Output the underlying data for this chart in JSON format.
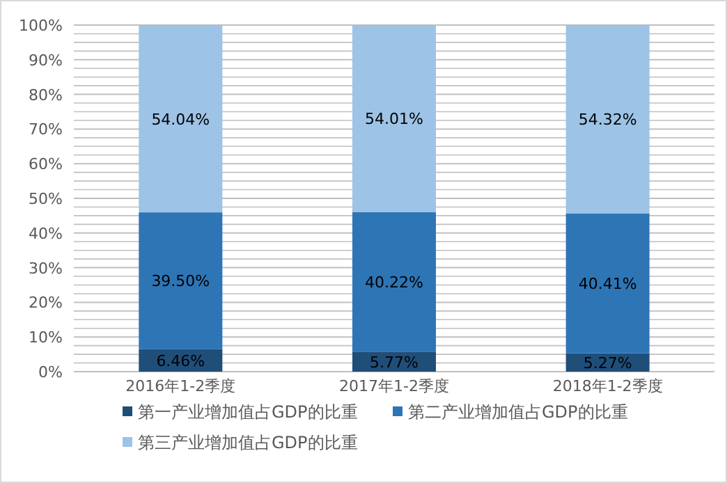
{
  "chart_data": {
    "type": "bar",
    "stacked": true,
    "categories": [
      "2016年1-2季度",
      "2017年1-2季度",
      "2018年1-2季度"
    ],
    "series": [
      {
        "name": "第一产业增加值占GDP的比重",
        "color": "#1f4e79",
        "values": [
          6.46,
          5.77,
          5.27
        ],
        "value_labels": [
          "6.46%",
          "5.77%",
          "5.27%"
        ]
      },
      {
        "name": "第二产业增加值占GDP的比重",
        "color": "#2e75b6",
        "values": [
          39.5,
          40.22,
          40.41
        ],
        "value_labels": [
          "39.50%",
          "40.22%",
          "40.41%"
        ]
      },
      {
        "name": "第三产业增加值占GDP的比重",
        "color": "#9dc3e6",
        "values": [
          54.04,
          54.01,
          54.32
        ],
        "value_labels": [
          "54.04%",
          "54.01%",
          "54.32%"
        ]
      }
    ],
    "ylim": [
      0,
      100
    ],
    "yticks": [
      {
        "value": 0,
        "label": "0%"
      },
      {
        "value": 10,
        "label": "10%"
      },
      {
        "value": 20,
        "label": "20%"
      },
      {
        "value": 30,
        "label": "30%"
      },
      {
        "value": 40,
        "label": "40%"
      },
      {
        "value": 50,
        "label": "50%"
      },
      {
        "value": 60,
        "label": "60%"
      },
      {
        "value": 70,
        "label": "70%"
      },
      {
        "value": 80,
        "label": "80%"
      },
      {
        "value": 90,
        "label": "90%"
      },
      {
        "value": 100,
        "label": "100%"
      }
    ],
    "grid": "y",
    "legend": "bottom"
  }
}
